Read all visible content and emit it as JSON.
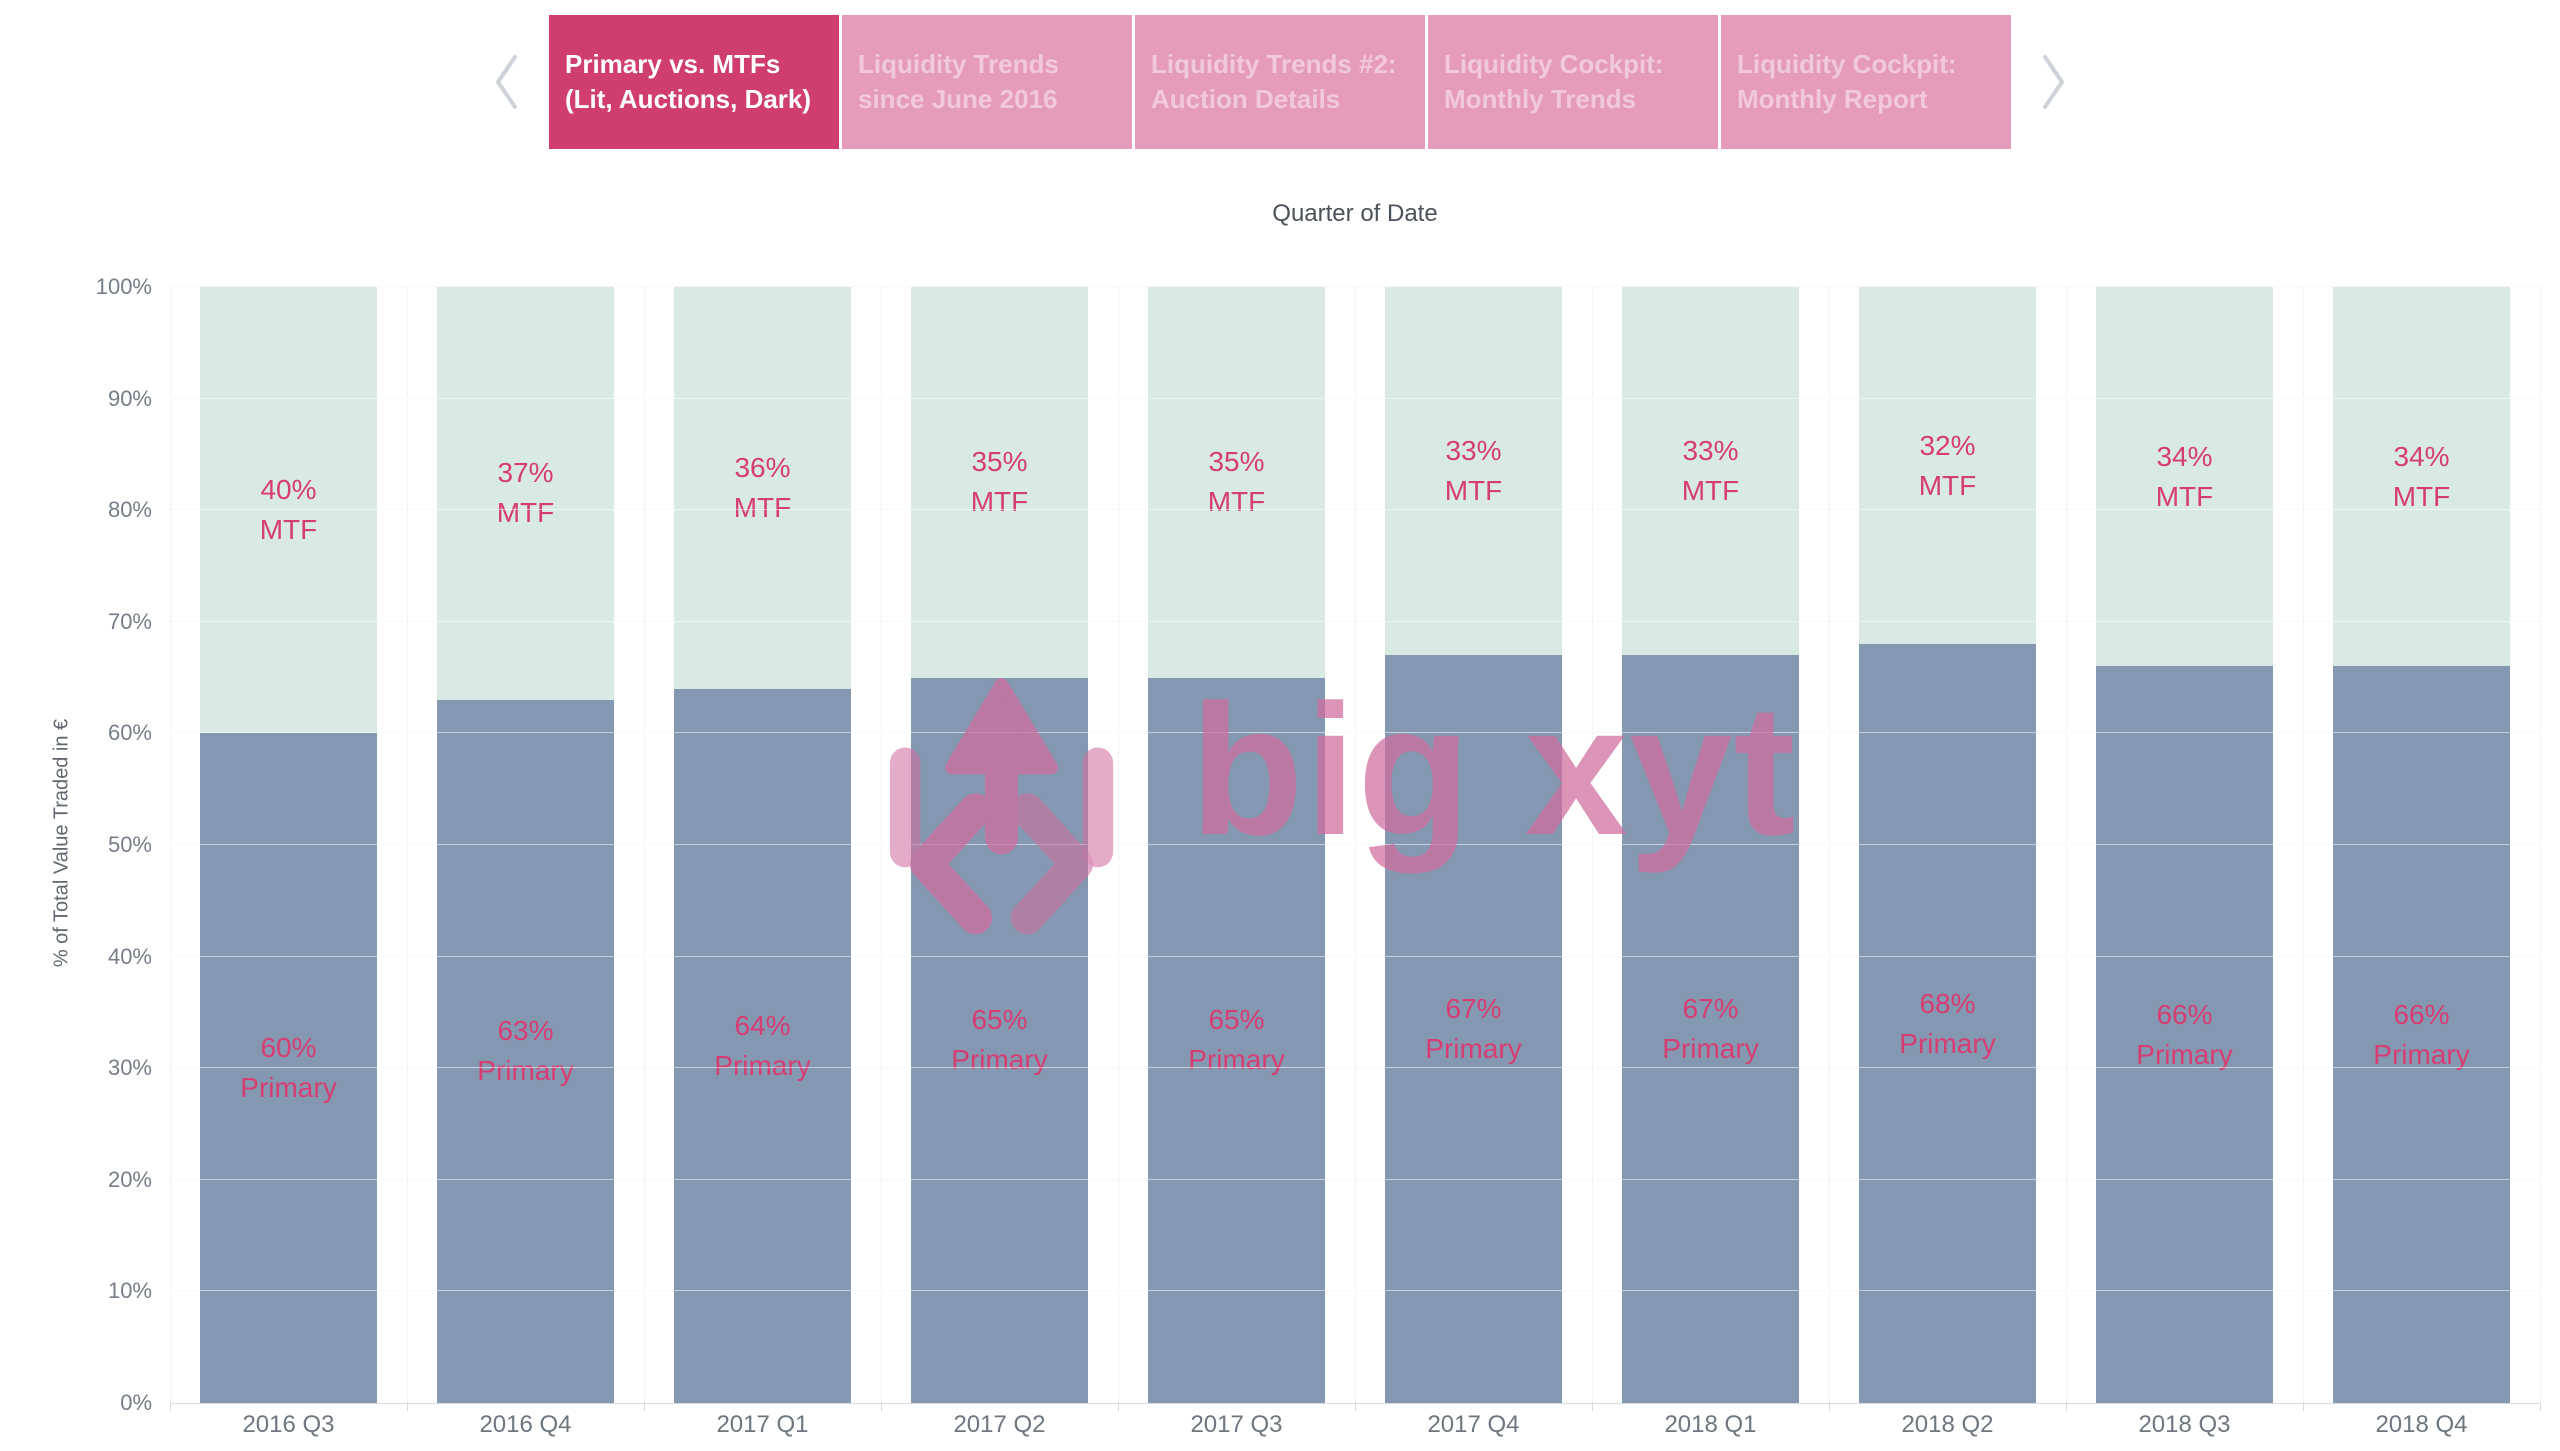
{
  "nav": {
    "prev_icon": "chevron-left",
    "next_icon": "chevron-right"
  },
  "tabs": [
    {
      "lines": [
        "Primary vs. MTFs",
        "(Lit, Auctions, Dark)"
      ],
      "active": true
    },
    {
      "lines": [
        "Liquidity Trends",
        "since June 2016"
      ],
      "active": false
    },
    {
      "lines": [
        "Liquidity Trends #2:",
        "Auction Details"
      ],
      "active": false
    },
    {
      "lines": [
        "Liquidity Cockpit:",
        "Monthly Trends"
      ],
      "active": false
    },
    {
      "lines": [
        "Liquidity Cockpit:",
        "Monthly Report"
      ],
      "active": false
    }
  ],
  "chart_data": {
    "type": "bar",
    "stacked": true,
    "title": "Quarter of Date",
    "ylabel": "% of Total Value Traded in €",
    "categories": [
      "2016 Q3",
      "2016 Q4",
      "2017 Q1",
      "2017 Q2",
      "2017 Q3",
      "2017 Q4",
      "2018 Q1",
      "2018 Q2",
      "2018 Q3",
      "2018 Q4"
    ],
    "series": [
      {
        "name": "Primary",
        "color": "#8598b1",
        "values": [
          60,
          63,
          64,
          65,
          65,
          67,
          67,
          68,
          66,
          66
        ]
      },
      {
        "name": "MTF",
        "color": "#d9eae3",
        "values": [
          40,
          37,
          36,
          35,
          35,
          33,
          33,
          32,
          34,
          34
        ]
      }
    ],
    "segment_labels": [
      [
        "60% Primary",
        "63% Primary",
        "64% Primary",
        "65% Primary",
        "65% Primary",
        "67% Primary",
        "67% Primary",
        "68% Primary",
        "66% Primary",
        "66% Primary"
      ],
      [
        "40% MTF",
        "37% MTF",
        "36% MTF",
        "35% MTF",
        "35% MTF",
        "33% MTF",
        "33% MTF",
        "32% MTF",
        "34% MTF",
        "34% MTF"
      ]
    ],
    "ylim": [
      0,
      100
    ],
    "yticks": [
      "0%",
      "10%",
      "20%",
      "30%",
      "40%",
      "50%",
      "60%",
      "70%",
      "80%",
      "90%",
      "100%"
    ],
    "grid": true,
    "legend": "none",
    "label_color": "#d63d73"
  },
  "watermark": {
    "text": "big xyt",
    "icon": "big-xyt-arrows-logo",
    "color": "#cf6d9d"
  },
  "colors": {
    "tab_active_bg": "#cf3e6e",
    "tab_active_text": "#ffffff",
    "tab_inactive_bg": "#e59cba",
    "tab_inactive_text": "#f2c9da",
    "chevron": "#cdd2d8"
  }
}
